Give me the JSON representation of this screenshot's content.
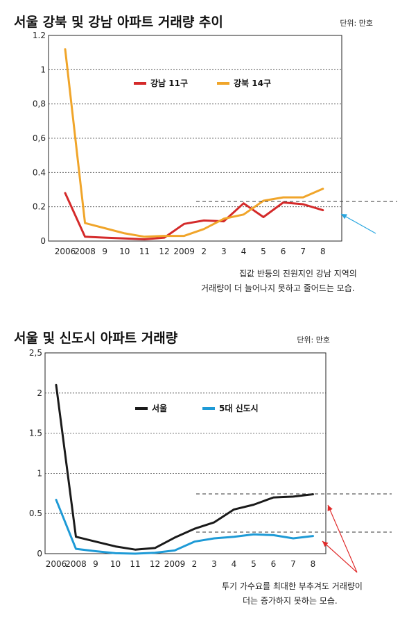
{
  "chart_data": [
    {
      "type": "line",
      "title": "서울 강북 및 강남 아파트 거래량 추이",
      "unit": "단위: 만호",
      "categories": [
        "2006",
        "2008",
        "9",
        "10",
        "11",
        "12",
        "2009",
        "2",
        "3",
        "4",
        "5",
        "6",
        "7",
        "8"
      ],
      "ylim": [
        0,
        1.2
      ],
      "yticks": [
        "0",
        "0.2",
        "0.4",
        "0,6",
        "0,8",
        "1",
        "1.2"
      ],
      "series": [
        {
          "name": "강남 11구",
          "color": "#d42a2a",
          "values": [
            0.28,
            0.025,
            0.02,
            0.015,
            0.01,
            0.02,
            0.1,
            0.12,
            0.115,
            0.22,
            0.14,
            0.225,
            0.215,
            0.18
          ]
        },
        {
          "name": "강북 14구",
          "color": "#f0a52a",
          "values": [
            1.12,
            0.105,
            0.075,
            0.045,
            0.025,
            0.03,
            0.03,
            0.07,
            0.13,
            0.155,
            0.235,
            0.255,
            0.255,
            0.305
          ]
        }
      ],
      "annotation": [
        "집값 반등의 진원지인 강남 지역의",
        "거래량이 더 늘어나지 못하고 줄어드는 모습."
      ],
      "annotation_color": "#2aa7e0",
      "grid": true,
      "legend_position": "top-center"
    },
    {
      "type": "line",
      "title": "서울 및 신도시 아파트 거래량",
      "unit": "단위: 만호",
      "categories": [
        "2006",
        "2008",
        "9",
        "10",
        "11",
        "12",
        "2009",
        "2",
        "3",
        "4",
        "5",
        "6",
        "7",
        "8"
      ],
      "ylim": [
        0,
        2.5
      ],
      "yticks": [
        "0",
        "0.5",
        "1",
        "1.5",
        "2",
        "2,5"
      ],
      "series": [
        {
          "name": "서울",
          "color": "#1a1a1a",
          "values": [
            2.1,
            0.21,
            0.15,
            0.09,
            0.05,
            0.07,
            0.2,
            0.31,
            0.39,
            0.55,
            0.61,
            0.7,
            0.71,
            0.74
          ]
        },
        {
          "name": "5대 신도시",
          "color": "#1e9ad6",
          "values": [
            0.67,
            0.06,
            0.03,
            0.005,
            0.0,
            0.01,
            0.04,
            0.15,
            0.19,
            0.21,
            0.24,
            0.23,
            0.19,
            0.22
          ]
        }
      ],
      "annotation": [
        "투기 가수요를 최대한 부추겨도 거래량이",
        "더는 증가하지 못하는 모습."
      ],
      "annotation_color": "#e02a2a",
      "grid": true,
      "legend_position": "top-center"
    }
  ]
}
